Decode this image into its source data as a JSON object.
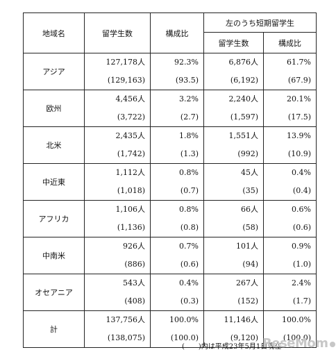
{
  "headers": {
    "region": "地域名",
    "students": "留学生数",
    "ratio": "構成比",
    "short_term_group": "左のうち短期留学生",
    "short_students": "留学生数",
    "short_ratio": "構成比"
  },
  "rows": [
    {
      "region": "アジア",
      "students": "127,178人",
      "students_prev": "(129,163)",
      "ratio": "92.3%",
      "ratio_prev": "(93.5)",
      "short_students": "6,876人",
      "short_students_prev": "(6,192)",
      "short_ratio": "61.7%",
      "short_ratio_prev": "(67.9)"
    },
    {
      "region": "欧州",
      "students": "4,456人",
      "students_prev": "(3,722)",
      "ratio": "3.2%",
      "ratio_prev": "(2.7)",
      "short_students": "2,240人",
      "short_students_prev": "(1,597)",
      "short_ratio": "20.1%",
      "short_ratio_prev": "(17.5)"
    },
    {
      "region": "北米",
      "students": "2,435人",
      "students_prev": "(1,742)",
      "ratio": "1.8%",
      "ratio_prev": "(1.3)",
      "short_students": "1,551人",
      "short_students_prev": "(992)",
      "short_ratio": "13.9%",
      "short_ratio_prev": "(10.9)"
    },
    {
      "region": "中近東",
      "students": "1,112人",
      "students_prev": "(1,018)",
      "ratio": "0.8%",
      "ratio_prev": "(0.7)",
      "short_students": "45人",
      "short_students_prev": "(35)",
      "short_ratio": "0.4%",
      "short_ratio_prev": "(0.4)"
    },
    {
      "region": "アフリカ",
      "students": "1,106人",
      "students_prev": "(1,136)",
      "ratio": "0.8%",
      "ratio_prev": "(0.8)",
      "short_students": "66人",
      "short_students_prev": "(58)",
      "short_ratio": "0.6%",
      "short_ratio_prev": "(0.6)"
    },
    {
      "region": "中南米",
      "students": "926人",
      "students_prev": "(886)",
      "ratio": "0.7%",
      "ratio_prev": "(0.6)",
      "short_students": "101人",
      "short_students_prev": "(94)",
      "short_ratio": "0.9%",
      "short_ratio_prev": "(1.0)"
    },
    {
      "region": "オセアニア",
      "students": "543人",
      "students_prev": "(408)",
      "ratio": "0.4%",
      "ratio_prev": "(0.3)",
      "short_students": "267人",
      "short_students_prev": "(152)",
      "short_ratio": "2.4%",
      "short_ratio_prev": "(1.7)"
    },
    {
      "region": "計",
      "students": "137,756人",
      "students_prev": "(138,075)",
      "ratio": "100.0%",
      "ratio_prev": "(100.0)",
      "short_students": "11,146人",
      "short_students_prev": "(9,120)",
      "short_ratio": "100.0%",
      "short_ratio_prev": "(100.0)"
    }
  ],
  "footnote": "(　　)内は平成23年5月1日現在",
  "logo_text": "ReseMom"
}
